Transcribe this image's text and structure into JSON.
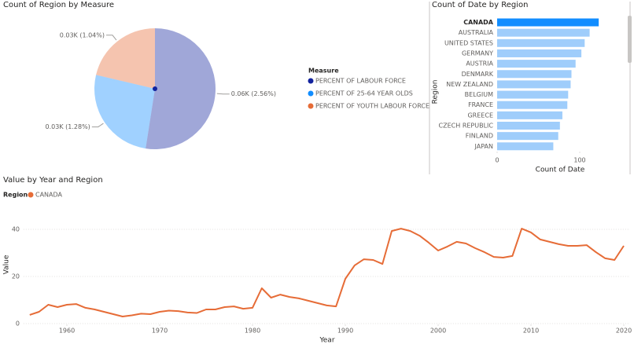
{
  "chart_data": [
    {
      "type": "pie",
      "title": "Count of Region by Measure",
      "legend_title": "Measure",
      "categories": [
        "PERCENT OF LABOUR FORCE",
        "PERCENT OF 25-64 YEAR OLDS",
        "PERCENT OF YOUTH LABOUR FORCE"
      ],
      "values": [
        2.56,
        1.28,
        1.04
      ],
      "value_labels": [
        "0.06K (2.56%)",
        "0.03K (1.28%)",
        "0.03K (1.04%)"
      ],
      "colors": [
        "#12239e",
        "#118dff",
        "#e66c37"
      ]
    },
    {
      "type": "hbar",
      "title": "Count of Date by Region",
      "xlabel": "Count of Date",
      "ylabel": "Region",
      "categories": [
        "CANADA",
        "AUSTRALIA",
        "UNITED STATES",
        "GERMANY",
        "AUSTRIA",
        "DENMARK",
        "NEW ZEALAND",
        "BELGIUM",
        "FRANCE",
        "GREECE",
        "CZECH REPUBLIC",
        "FINLAND",
        "JAPAN"
      ],
      "values": [
        123,
        112,
        106,
        102,
        95,
        90,
        89,
        86,
        85,
        79,
        76,
        74,
        68
      ],
      "color": "#118dff",
      "colors": [
        "#118dff",
        "#9fcdfb",
        "#9fcdfb",
        "#9fcdfb",
        "#9fcdfb",
        "#9fcdfb",
        "#9fcdfb",
        "#9fcdfb",
        "#9fcdfb",
        "#9fcdfb",
        "#9fcdfb",
        "#9fcdfb",
        "#9fcdfb"
      ],
      "xlim": [
        0,
        130
      ],
      "xticks": [
        0,
        100
      ]
    },
    {
      "type": "line",
      "title": "Value by Year and Region",
      "xlabel": "Year",
      "ylabel": "Value",
      "legend_title": "Region",
      "x": [
        1956,
        1957,
        1958,
        1959,
        1960,
        1961,
        1962,
        1963,
        1964,
        1965,
        1966,
        1967,
        1968,
        1969,
        1970,
        1971,
        1972,
        1973,
        1974,
        1975,
        1976,
        1977,
        1978,
        1979,
        1980,
        1981,
        1982,
        1983,
        1984,
        1985,
        1986,
        1987,
        1988,
        1989,
        1990,
        1991,
        1992,
        1993,
        1994,
        1995,
        1996,
        1997,
        1998,
        1999,
        2000,
        2001,
        2002,
        2003,
        2004,
        2005,
        2006,
        2007,
        2008,
        2009,
        2010,
        2011,
        2012,
        2013,
        2014,
        2015,
        2016,
        2017,
        2018,
        2019,
        2020
      ],
      "series": [
        {
          "name": "CANADA",
          "color": "#e66c37",
          "values": [
            3.7,
            5,
            8,
            7,
            8,
            8.3,
            6.7,
            6,
            5,
            4,
            3,
            3.5,
            4.2,
            4,
            5,
            5.5,
            5.3,
            4.7,
            4.5,
            6,
            6,
            7,
            7.3,
            6.3,
            6.7,
            15,
            11,
            12.3,
            11.3,
            10.7,
            9.7,
            8.7,
            7.7,
            7.3,
            19,
            24.7,
            27.3,
            27,
            25.3,
            39.3,
            40.3,
            39.3,
            37.3,
            34.3,
            31,
            32.7,
            34.7,
            34,
            32,
            30.3,
            28.3,
            28,
            28.7,
            40.3,
            38.7,
            35.7,
            34.7,
            33.7,
            33,
            33,
            33.3,
            30.3,
            27.7,
            27,
            33
          ]
        }
      ],
      "xlim": [
        1956,
        2020
      ],
      "xticks": [
        1960,
        1970,
        1980,
        1990,
        2000,
        2010,
        2020
      ],
      "ylim": [
        0,
        50
      ],
      "yticks": [
        0,
        20,
        40
      ],
      "grid": true
    }
  ]
}
